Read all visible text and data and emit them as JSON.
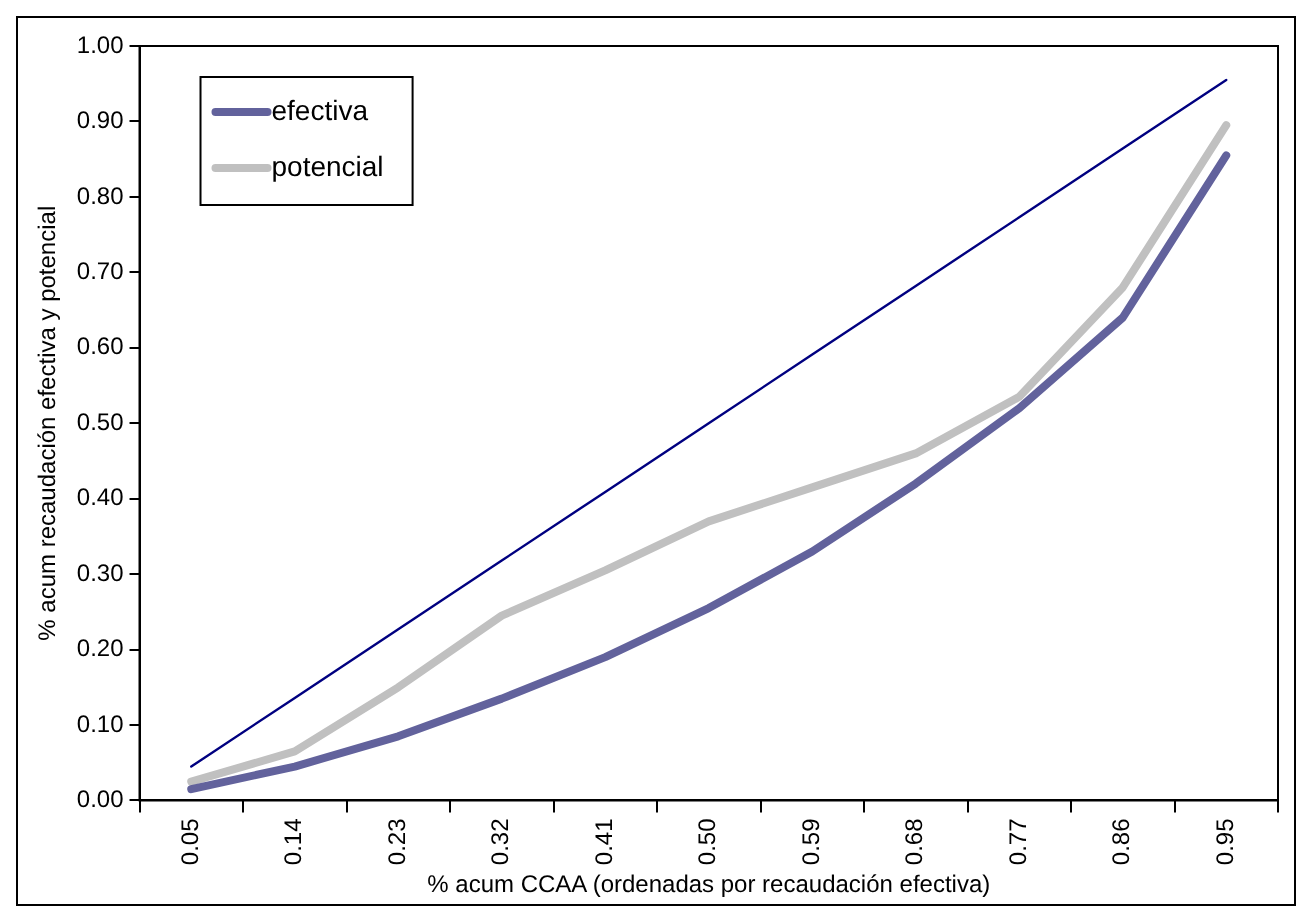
{
  "chart_data": {
    "type": "line",
    "xlabel": "% acum CCAA (ordenadas por recaudación efectiva)",
    "ylabel": "% acum recaudación efectiva y potencial",
    "categories": [
      "0.05",
      "0.14",
      "0.23",
      "0.32",
      "0.41",
      "0.50",
      "0.59",
      "0.68",
      "0.77",
      "0.86",
      "0.95"
    ],
    "series": [
      {
        "name": "efectiva",
        "color": "#62629c",
        "values": [
          0.015,
          0.045,
          0.085,
          0.135,
          0.19,
          0.255,
          0.33,
          0.42,
          0.52,
          0.64,
          0.855
        ]
      },
      {
        "name": "potencial",
        "color": "#c0c0c0",
        "values": [
          0.025,
          0.065,
          0.15,
          0.245,
          0.305,
          0.37,
          0.415,
          0.46,
          0.535,
          0.68,
          0.895
        ]
      },
      {
        "color": "#000080",
        "values": [
          0.045,
          0.136,
          0.227,
          0.318,
          0.409,
          0.5,
          0.591,
          0.682,
          0.773,
          0.864,
          0.955
        ]
      }
    ],
    "ylim": [
      0,
      1
    ],
    "yticks": [
      {
        "value": 0,
        "label": "0.00"
      },
      {
        "value": 0.1,
        "label": "0.10"
      },
      {
        "value": 0.2,
        "label": "0.20"
      },
      {
        "value": 0.3,
        "label": "0.30"
      },
      {
        "value": 0.4,
        "label": "0.40"
      },
      {
        "value": 0.5,
        "label": "0.50"
      },
      {
        "value": 0.6,
        "label": "0.60"
      },
      {
        "value": 0.7,
        "label": "0.70"
      },
      {
        "value": 0.8,
        "label": "0.80"
      },
      {
        "value": 0.9,
        "label": "0.90"
      },
      {
        "value": 1,
        "label": "1.00"
      }
    ],
    "grid": false,
    "legend": "top left",
    "marker": "none",
    "line_style": "solid"
  }
}
